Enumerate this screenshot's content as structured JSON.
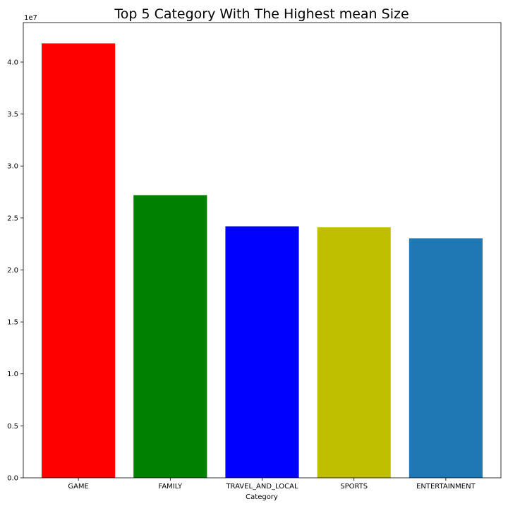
{
  "chart_data": {
    "type": "bar",
    "title": "Top 5 Category With The Highest mean Size",
    "xlabel": "Category",
    "ylabel": "",
    "y_offset_label": "1e7",
    "categories": [
      "GAME",
      "FAMILY",
      "TRAVEL_AND_LOCAL",
      "SPORTS",
      "ENTERTAINMENT"
    ],
    "values": [
      41800000,
      27200000,
      24200000,
      24100000,
      23050000
    ],
    "colors": [
      "#ff0000",
      "#008000",
      "#0000ff",
      "#bfbf00",
      "#1f77b4"
    ],
    "ylim": [
      0,
      43800000
    ],
    "yticks": [
      0,
      5000000,
      10000000,
      15000000,
      20000000,
      25000000,
      30000000,
      35000000,
      40000000
    ],
    "ytick_labels": [
      "0.0",
      "0.5",
      "1.0",
      "1.5",
      "2.0",
      "2.5",
      "3.0",
      "3.5",
      "4.0"
    ],
    "grid": false,
    "legend": "none"
  }
}
